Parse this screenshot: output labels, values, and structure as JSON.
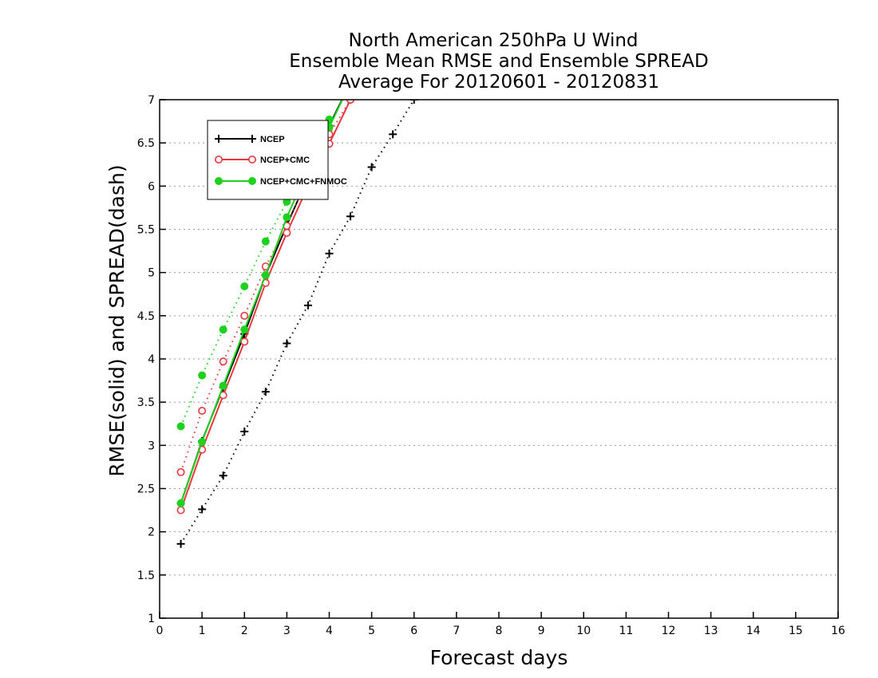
{
  "chart_data": {
    "type": "line",
    "title": [
      "North American 250hPa U Wind",
      "Ensemble Mean RMSE and Ensemble SPREAD",
      "Average For 20120601 - 20120831"
    ],
    "xlabel": "Forecast days",
    "ylabel": "RMSE(solid) and SPREAD(dash)",
    "xlim": [
      0,
      16
    ],
    "ylim": [
      1,
      7
    ],
    "xticks": [
      "0",
      "1",
      "2",
      "3",
      "4",
      "5",
      "6",
      "7",
      "8",
      "9",
      "10",
      "11",
      "12",
      "13",
      "14",
      "15",
      "16"
    ],
    "yticks": [
      "1",
      "1.5",
      "2",
      "2.5",
      "3",
      "3.5",
      "4",
      "4.5",
      "5",
      "5.5",
      "6",
      "6.5",
      "7"
    ],
    "grid": "horizontal dotted",
    "legend_position": "top-left",
    "series": [
      {
        "name": "NCEP",
        "metric": "RMSE",
        "style": "solid",
        "marker": "plus",
        "color": "#000000",
        "x": [
          0.5,
          1,
          1.5,
          2,
          2.5,
          3,
          3.5,
          4,
          4.5
        ],
        "y": [
          2.33,
          3.05,
          3.67,
          4.29,
          4.97,
          5.55,
          6.1,
          6.7,
          7.2
        ]
      },
      {
        "name": "NCEP",
        "metric": "SPREAD",
        "style": "dotted",
        "marker": "plus",
        "color": "#000000",
        "x": [
          0.5,
          1,
          1.5,
          2,
          2.5,
          3,
          3.5,
          4,
          4.5,
          5,
          5.5,
          6
        ],
        "y": [
          1.86,
          2.26,
          2.65,
          3.16,
          3.62,
          4.18,
          4.62,
          5.22,
          5.65,
          6.22,
          6.6,
          7.0
        ]
      },
      {
        "name": "NCEP+CMC",
        "metric": "RMSE",
        "style": "solid",
        "marker": "open-circle",
        "color": "#e8383d",
        "x": [
          0.5,
          1,
          1.5,
          2,
          2.5,
          3,
          3.5,
          4,
          4.5
        ],
        "y": [
          2.25,
          2.95,
          3.58,
          4.2,
          4.88,
          5.46,
          6.0,
          6.49,
          7.0
        ]
      },
      {
        "name": "NCEP+CMC",
        "metric": "SPREAD",
        "style": "dotted",
        "marker": "open-circle",
        "color": "#e8383d",
        "x": [
          0.5,
          1,
          1.5,
          2,
          2.5,
          3,
          3.5,
          4,
          4.5
        ],
        "y": [
          2.69,
          3.4,
          3.97,
          4.5,
          5.07,
          5.54,
          6.1,
          6.6,
          7.0
        ]
      },
      {
        "name": "NCEP+CMC+FNMOC",
        "metric": "RMSE",
        "style": "solid",
        "marker": "filled-circle",
        "color": "#1ed11e",
        "x": [
          0.5,
          1,
          1.5,
          2,
          2.5,
          3,
          3.5,
          4,
          4.5
        ],
        "y": [
          2.33,
          3.04,
          3.69,
          4.34,
          4.97,
          5.64,
          6.2,
          6.68,
          7.2
        ]
      },
      {
        "name": "NCEP+CMC+FNMOC",
        "metric": "SPREAD",
        "style": "dotted",
        "marker": "filled-circle",
        "color": "#1ed11e",
        "x": [
          0.5,
          1,
          1.5,
          2,
          2.5,
          3,
          3.5,
          4
        ],
        "y": [
          3.22,
          3.81,
          4.34,
          4.84,
          5.36,
          5.82,
          6.3,
          6.77
        ]
      }
    ],
    "legend": [
      {
        "label": "NCEP",
        "marker": "plus",
        "color": "#000000"
      },
      {
        "label": "NCEP+CMC",
        "marker": "open-circle",
        "color": "#e8383d"
      },
      {
        "label": "NCEP+CMC+FNMOC",
        "marker": "filled-circle",
        "color": "#1ed11e"
      }
    ]
  }
}
